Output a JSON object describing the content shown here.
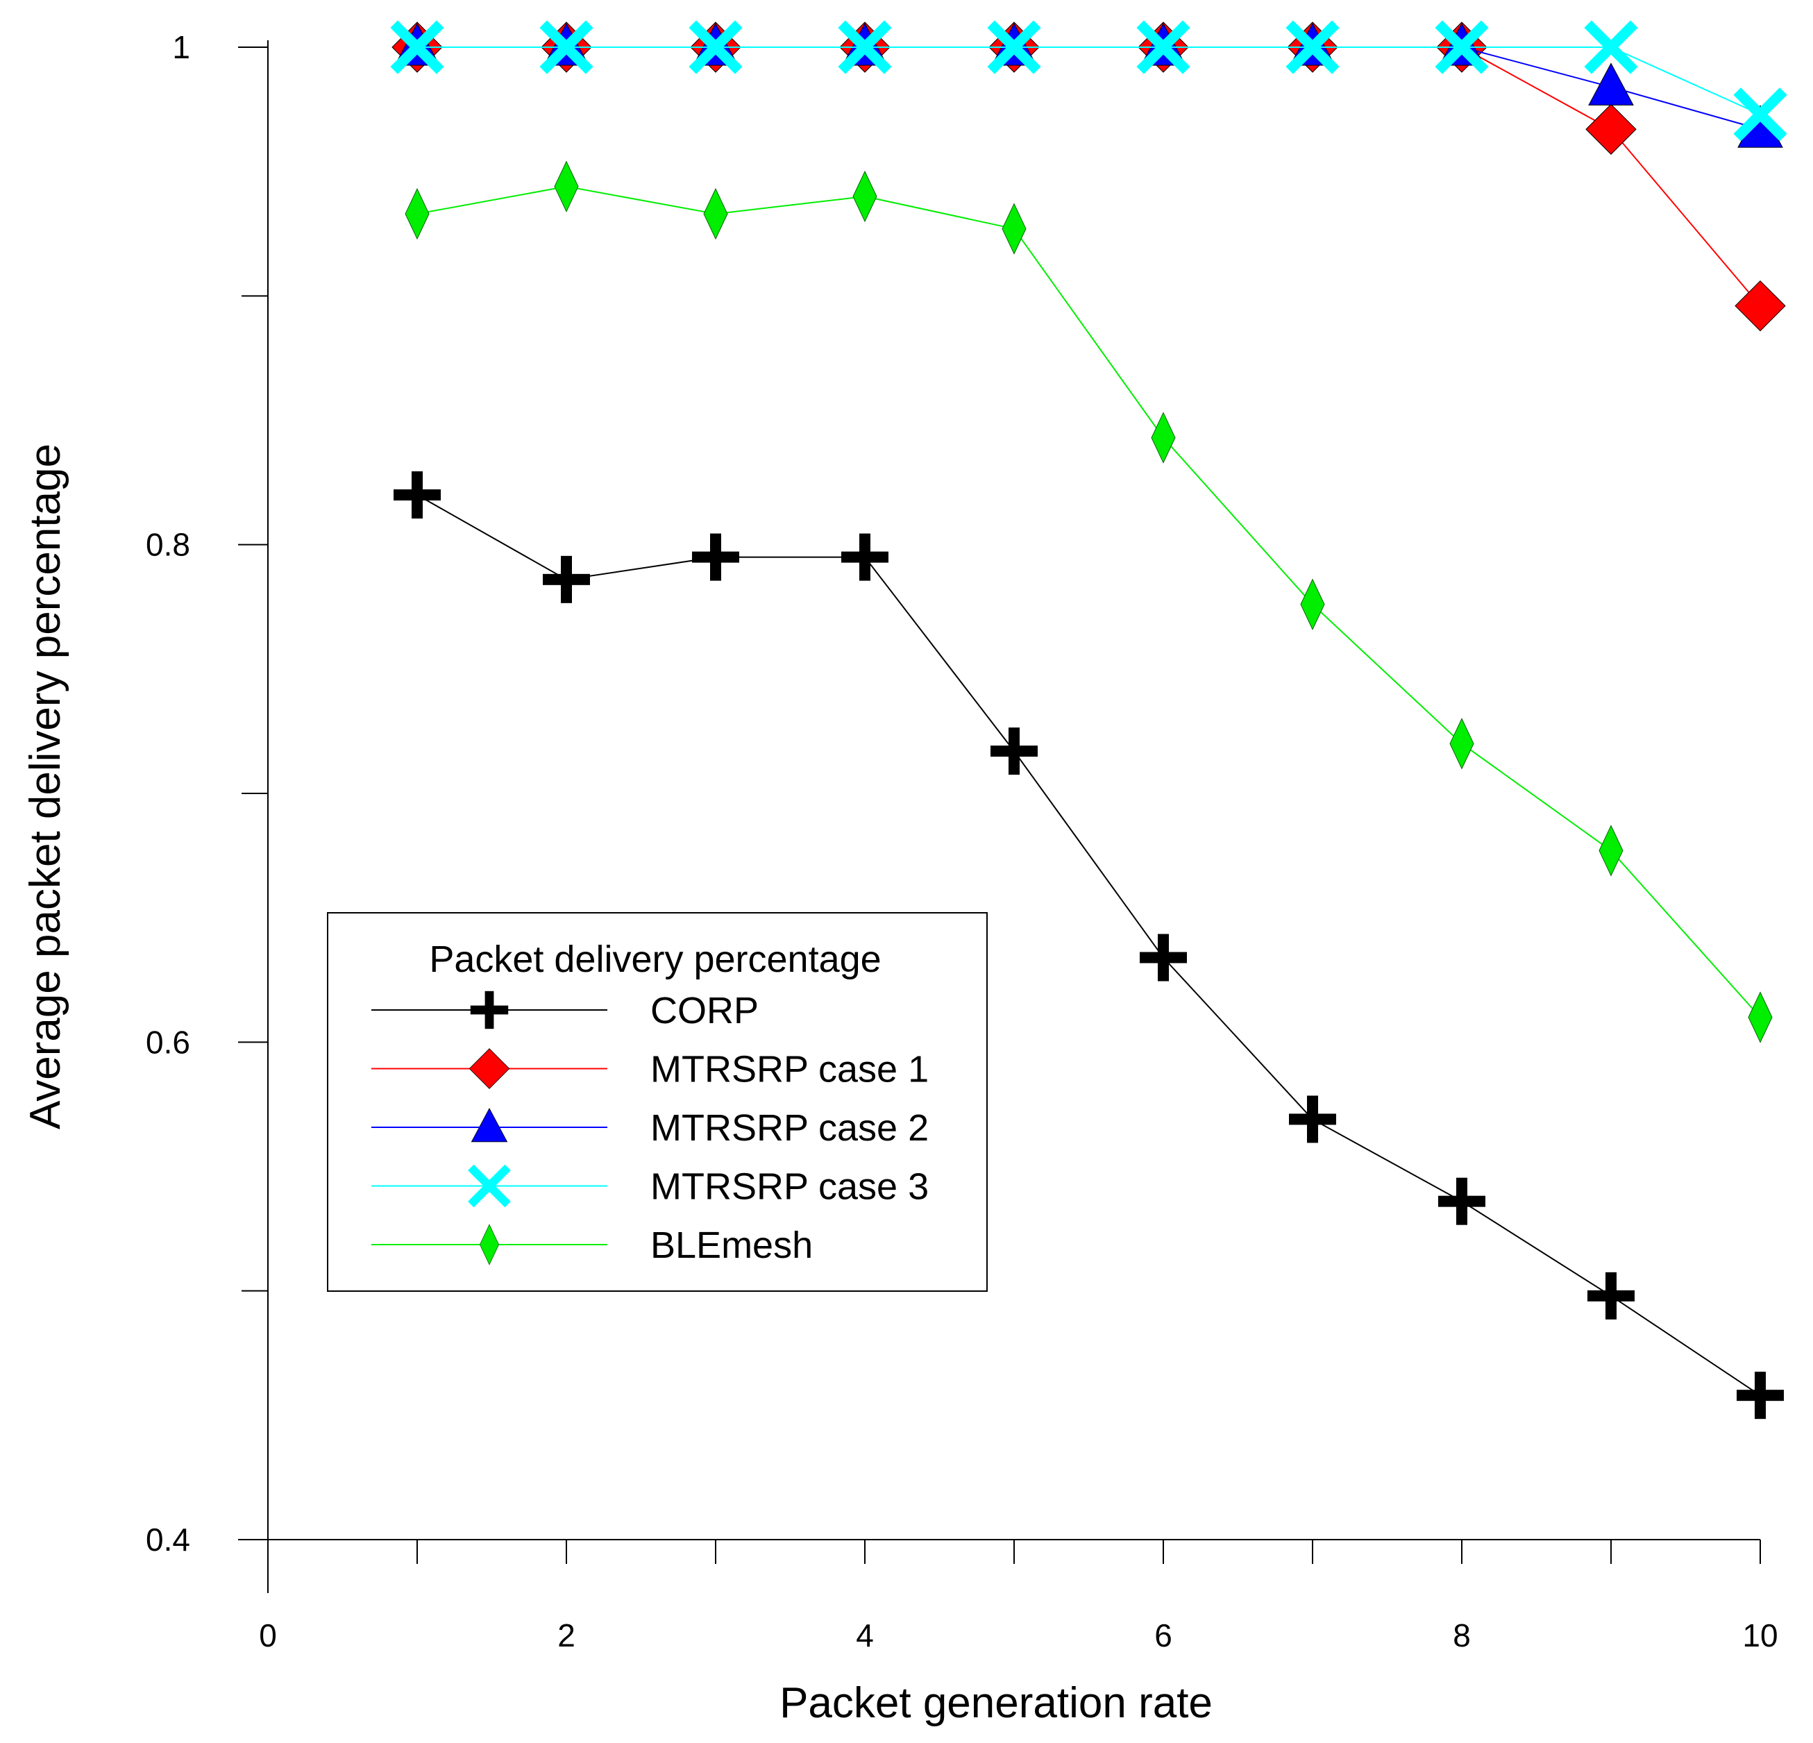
{
  "chart_data": {
    "type": "line",
    "title": "",
    "xlabel": "Packet generation rate",
    "ylabel": "Average packet delivery percentage",
    "xlim": [
      0,
      10
    ],
    "ylim": [
      0.4,
      1.0
    ],
    "x_ticks": [
      0,
      2,
      4,
      6,
      8,
      10
    ],
    "x_tick_labels": [
      "0",
      "2",
      "4",
      "6",
      "8",
      "10"
    ],
    "x_minor_ticks": [
      1,
      2,
      3,
      4,
      5,
      6,
      7,
      8,
      9,
      10
    ],
    "y_ticks": [
      0.4,
      0.6,
      0.8,
      1.0
    ],
    "y_tick_labels": [
      "0.4",
      "0.6",
      "0.8",
      "1"
    ],
    "y_minor_ticks": [
      0.5,
      0.7,
      0.9
    ],
    "grid": false,
    "x": [
      1,
      2,
      3,
      4,
      5,
      6,
      7,
      8,
      9,
      10
    ],
    "legend": {
      "title": "Packet delivery percentage",
      "placement": "lower-left"
    },
    "series": [
      {
        "name": "CORP",
        "color": "#000000",
        "marker": "plus",
        "values": [
          0.82,
          0.786,
          0.795,
          0.795,
          0.717,
          0.634,
          0.569,
          0.536,
          0.498,
          0.458
        ]
      },
      {
        "name": "MTRSRP case 1",
        "color": "#ff0000",
        "marker": "diamond",
        "values": [
          1.0,
          1.0,
          1.0,
          1.0,
          1.0,
          1.0,
          1.0,
          1.0,
          0.967,
          0.896
        ]
      },
      {
        "name": "MTRSRP case 2",
        "color": "#0000ff",
        "marker": "triangle",
        "values": [
          1.0,
          1.0,
          1.0,
          1.0,
          1.0,
          1.0,
          1.0,
          1.0,
          0.984,
          0.967
        ]
      },
      {
        "name": "MTRSRP case 3",
        "color": "#00ffff",
        "marker": "x",
        "values": [
          1.0,
          1.0,
          1.0,
          1.0,
          1.0,
          1.0,
          1.0,
          1.0,
          1.0,
          0.973
        ]
      },
      {
        "name": "BLEmesh",
        "color": "#00ee00",
        "marker": "thin-diamond",
        "values": [
          0.933,
          0.944,
          0.933,
          0.94,
          0.927,
          0.843,
          0.776,
          0.72,
          0.677,
          0.61
        ]
      }
    ]
  }
}
